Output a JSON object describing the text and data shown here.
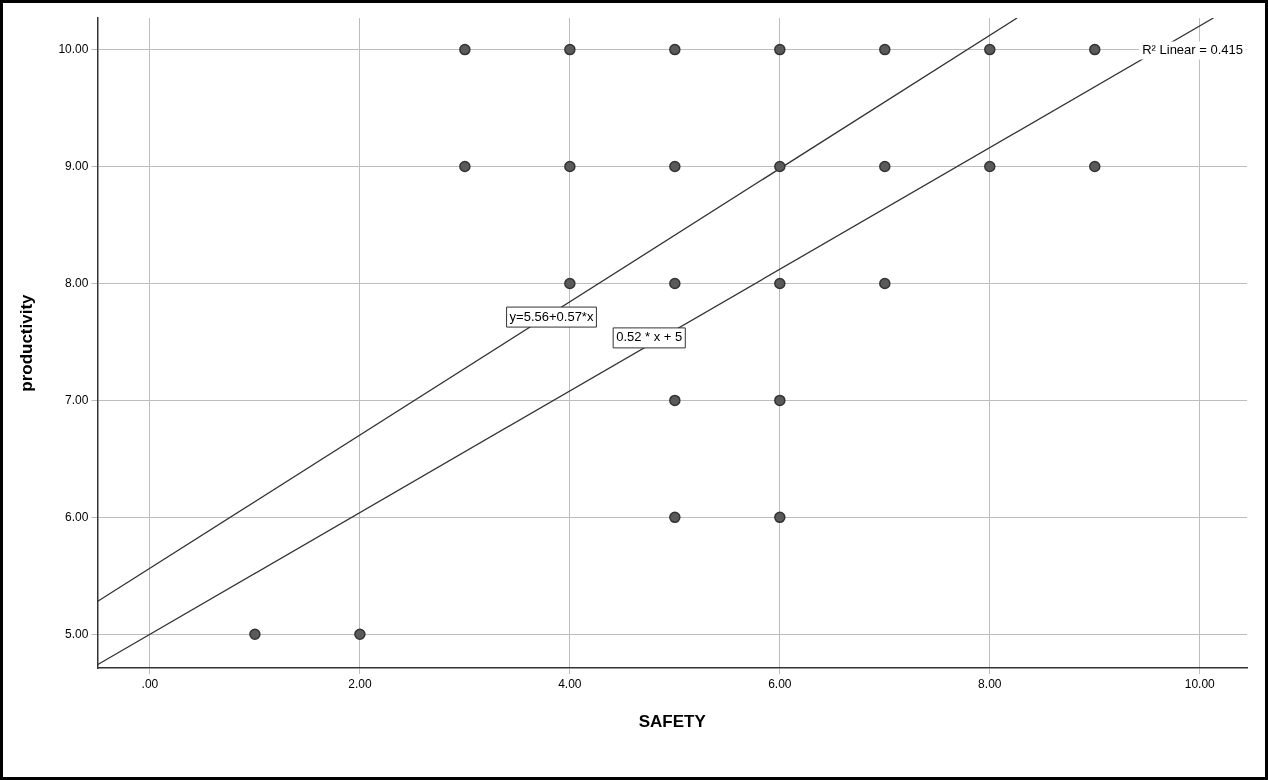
{
  "chart_data": {
    "type": "scatter",
    "xlabel": "SAFETY",
    "ylabel": "productivity",
    "series": [
      {
        "type": "scatter",
        "marker": "circle",
        "color": "#5a5a5a",
        "x": [
          1,
          2,
          3,
          3,
          4,
          4,
          4,
          5,
          5,
          5,
          5,
          5,
          6,
          6,
          6,
          6,
          6,
          7,
          7,
          7,
          8,
          8,
          9,
          9
        ],
        "values": [
          5,
          5,
          9,
          10,
          8,
          9,
          10,
          6,
          7,
          8,
          9,
          10,
          6,
          7,
          8,
          9,
          10,
          8,
          9,
          10,
          9,
          10,
          9,
          10
        ]
      },
      {
        "type": "line",
        "color": "#333333",
        "x": [
          -0.5,
          8.26
        ],
        "values": [
          5.28,
          10.27
        ]
      },
      {
        "type": "line",
        "color": "#333333",
        "x": [
          -0.5,
          10.13
        ],
        "values": [
          4.74,
          10.27
        ]
      }
    ],
    "xlim": [
      -0.5,
      10.45
    ],
    "ylim": [
      4.71,
      10.27
    ],
    "xticks": [
      {
        "value": 0,
        "label": ".00"
      },
      {
        "value": 2,
        "label": "2.00"
      },
      {
        "value": 4,
        "label": "4.00"
      },
      {
        "value": 6,
        "label": "6.00"
      },
      {
        "value": 8,
        "label": "8.00"
      },
      {
        "value": 10,
        "label": "10.00"
      }
    ],
    "yticks": [
      {
        "value": 5,
        "label": "5.00"
      },
      {
        "value": 6,
        "label": "6.00"
      },
      {
        "value": 7,
        "label": "7.00"
      },
      {
        "value": 8,
        "label": "8.00"
      },
      {
        "value": 9,
        "label": "9.00"
      },
      {
        "value": 10,
        "label": "10.00"
      }
    ],
    "annotations": [
      "y=5.56+0.57*x",
      "0.52 * x + 5",
      "R² Linear = 0.415"
    ],
    "grid": true,
    "legend": false
  }
}
